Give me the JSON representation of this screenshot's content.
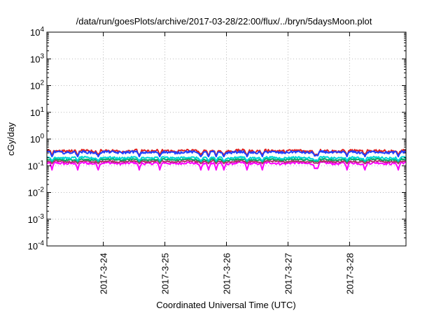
{
  "chart_data": {
    "type": "line",
    "title": "/data/run/goesPlots/archive/2017-03-28/22:00/flux/../bryn/5daysMoon.plot",
    "xlabel": "Coordinated Universal Time (UTC)",
    "ylabel": "cGy/day",
    "yscale": "log",
    "ylim": [
      0.0001,
      10000
    ],
    "xlim": [
      "2017-03-23 02:00",
      "2017-03-28 22:00"
    ],
    "grid": true,
    "yticks": [
      {
        "base": "10",
        "exp": "-4",
        "value": 0.0001
      },
      {
        "base": "10",
        "exp": "-3",
        "value": 0.001
      },
      {
        "base": "10",
        "exp": "-2",
        "value": 0.01
      },
      {
        "base": "10",
        "exp": "-1",
        "value": 0.1
      },
      {
        "base": "10",
        "exp": "0",
        "value": 1
      },
      {
        "base": "10",
        "exp": "1",
        "value": 10
      },
      {
        "base": "10",
        "exp": "2",
        "value": 100
      },
      {
        "base": "10",
        "exp": "3",
        "value": 1000
      },
      {
        "base": "10",
        "exp": "4",
        "value": 10000
      }
    ],
    "xticks": [
      {
        "label": "2017-3-24",
        "t": "2017-03-24 00:00"
      },
      {
        "label": "2017-3-25",
        "t": "2017-03-25 00:00"
      },
      {
        "label": "2017-3-26",
        "t": "2017-03-26 00:00"
      },
      {
        "label": "2017-3-27",
        "t": "2017-03-27 00:00"
      },
      {
        "label": "2017-3-28",
        "t": "2017-03-28 00:00"
      }
    ],
    "series": [
      {
        "color": "#ff00ff",
        "level": 0.125,
        "noise": 0.1,
        "dip_to": 0.07
      },
      {
        "color": "#b0306a",
        "level": 0.145,
        "noise": 0.07,
        "dip_to": 0.12
      },
      {
        "color": "#00a860",
        "level": 0.17,
        "noise": 0.06,
        "dip_to": 0.14
      },
      {
        "color": "#00d4d4",
        "level": 0.2,
        "noise": 0.08,
        "dip_to": 0.15
      },
      {
        "color": "#e02020",
        "level": 0.36,
        "noise": 0.12,
        "dip_to": 0.24
      },
      {
        "color": "#2040ff",
        "level": 0.32,
        "noise": 0.1,
        "dip_to": 0.22
      }
    ],
    "dips": [
      "2017-03-23 04:00",
      "2017-03-23 14:00",
      "2017-03-23 22:00",
      "2017-03-24 14:00",
      "2017-03-24 22:00",
      "2017-03-25 14:00",
      "2017-03-25 17:00",
      "2017-03-25 20:00",
      "2017-03-25 23:00",
      "2017-03-26 08:00",
      "2017-03-26 14:00",
      "2017-03-27 10:30",
      "2017-03-27 11:30",
      "2017-03-27 23:00",
      "2017-03-28 06:00",
      "2017-03-28 19:00"
    ]
  }
}
